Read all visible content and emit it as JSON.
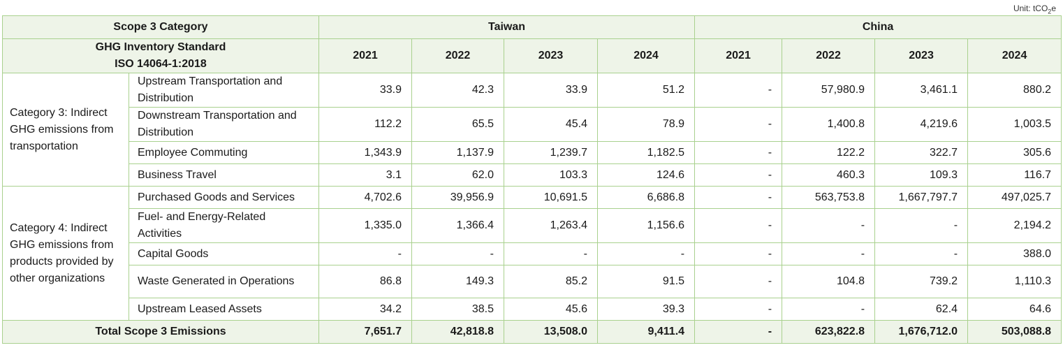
{
  "unit_label": "Unit: tCO",
  "unit_sub": "2",
  "unit_suffix": "e",
  "header": {
    "category_label": "Scope 3 Category",
    "taiwan_label": "Taiwan",
    "china_label": "China",
    "standard_line1": "GHG Inventory Standard",
    "standard_line2": "ISO 14064-1:2018",
    "years_taiwan": [
      "2021",
      "2022",
      "2023",
      "2024"
    ],
    "years_china": [
      "2021",
      "2022",
      "2023",
      "2024"
    ]
  },
  "groups": [
    {
      "category": "Category 3: Indirect GHG emissions from transportation",
      "rows": [
        {
          "name": "Upstream Transportation and Distribution",
          "taiwan": [
            "33.9",
            "42.3",
            "33.9",
            "51.2"
          ],
          "china": [
            "-",
            "57,980.9",
            "3,461.1",
            "880.2"
          ]
        },
        {
          "name": "Downstream Transportation and Distribution",
          "taiwan": [
            "112.2",
            "65.5",
            "45.4",
            "78.9"
          ],
          "china": [
            "-",
            "1,400.8",
            "4,219.6",
            "1,003.5"
          ]
        },
        {
          "name": "Employee Commuting",
          "taiwan": [
            "1,343.9",
            "1,137.9",
            "1,239.7",
            "1,182.5"
          ],
          "china": [
            "-",
            "122.2",
            "322.7",
            "305.6"
          ]
        },
        {
          "name": "Business Travel",
          "taiwan": [
            "3.1",
            "62.0",
            "103.3",
            "124.6"
          ],
          "china": [
            "-",
            "460.3",
            "109.3",
            "116.7"
          ]
        }
      ]
    },
    {
      "category": "Category 4: Indirect GHG emissions from products provided by other organizations",
      "rows": [
        {
          "name": "Purchased Goods and Services",
          "taiwan": [
            "4,702.6",
            "39,956.9",
            "10,691.5",
            "6,686.8"
          ],
          "china": [
            "-",
            "563,753.8",
            "1,667,797.7",
            "497,025.7"
          ]
        },
        {
          "name": "Fuel- and Energy-Related Activities",
          "taiwan": [
            "1,335.0",
            "1,366.4",
            "1,263.4",
            "1,156.6"
          ],
          "china": [
            "-",
            "-",
            "-",
            "2,194.2"
          ]
        },
        {
          "name": "Capital Goods",
          "taiwan": [
            "-",
            "-",
            "-",
            "-"
          ],
          "china": [
            "-",
            "-",
            "-",
            "388.0"
          ]
        },
        {
          "name": "Waste Generated in Operations",
          "taiwan": [
            "86.8",
            "149.3",
            "85.2",
            "91.5"
          ],
          "china": [
            "-",
            "104.8",
            "739.2",
            "1,110.3"
          ]
        },
        {
          "name": "Upstream Leased Assets",
          "taiwan": [
            "34.2",
            "38.5",
            "45.6",
            "39.3"
          ],
          "china": [
            "-",
            "-",
            "62.4",
            "64.6"
          ]
        }
      ]
    }
  ],
  "total": {
    "label": "Total Scope 3 Emissions",
    "taiwan": [
      "7,651.7",
      "42,818.8",
      "13,508.0",
      "9,411.4"
    ],
    "china": [
      "-",
      "623,822.8",
      "1,676,712.0",
      "503,088.8"
    ]
  }
}
